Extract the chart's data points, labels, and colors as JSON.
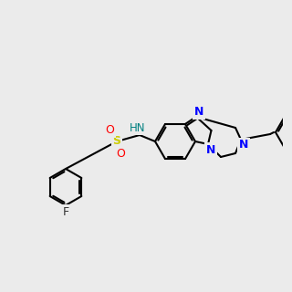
{
  "background_color": "#ebebeb",
  "bond_color": "#000000",
  "N_color": "#0000ff",
  "S_color": "#cccc00",
  "O_color": "#ff0000",
  "F_color": "#000000",
  "H_color": "#008080",
  "lw": 1.5,
  "lw_double": 1.5
}
